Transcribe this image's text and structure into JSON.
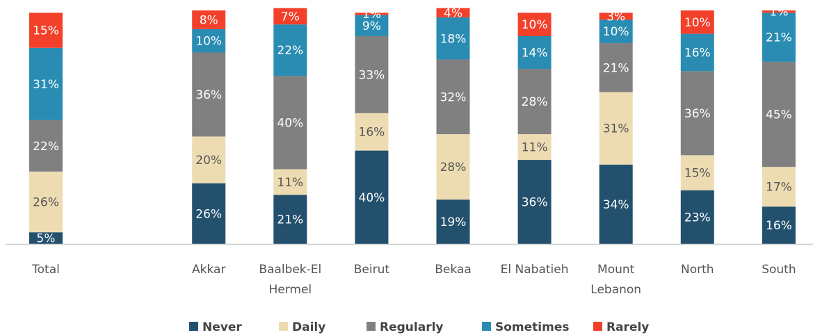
{
  "chart_data": {
    "type": "stacked_bar",
    "categories": [
      "Total",
      null,
      "Akkar",
      "Baalbek-El\nHermel",
      "Beirut",
      "Bekaa",
      "El Nabatieh",
      "Mount\nLebanon",
      "North",
      "South"
    ],
    "ylim": [
      0,
      100
    ],
    "legend": "bottom",
    "series": [
      {
        "name": "Never",
        "color": "#22506d",
        "values": [
          5,
          null,
          26,
          21,
          40,
          19,
          36,
          34,
          23,
          16
        ],
        "value_labels": [
          "5%",
          null,
          "26%",
          "21%",
          "40%",
          "19%",
          "36%",
          "34%",
          "23%",
          "16%"
        ]
      },
      {
        "name": "Daily",
        "color": "#eddcb2",
        "values": [
          26,
          null,
          20,
          11,
          16,
          28,
          11,
          31,
          15,
          17
        ],
        "value_labels": [
          "26%",
          null,
          "20%",
          "11%",
          "16%",
          "28%",
          "11%",
          "31%",
          "15%",
          "17%"
        ]
      },
      {
        "name": "Regularly",
        "color": "#808080",
        "values": [
          22,
          null,
          36,
          40,
          33,
          32,
          28,
          21,
          36,
          45
        ],
        "value_labels": [
          "22%",
          null,
          "36%",
          "40%",
          "33%",
          "32%",
          "28%",
          "21%",
          "36%",
          "45%"
        ]
      },
      {
        "name": "Sometimes",
        "color": "#2a8cb2",
        "values": [
          31,
          null,
          10,
          22,
          9,
          18,
          14,
          10,
          16,
          21
        ],
        "value_labels": [
          "31%",
          null,
          "10%",
          "22%",
          "9%",
          "18%",
          "14%",
          "10%",
          "16%",
          "21%"
        ]
      },
      {
        "name": "Rarely",
        "color": "#f3402b",
        "values": [
          15,
          null,
          8,
          7,
          1,
          4,
          10,
          3,
          10,
          1
        ],
        "value_labels": [
          "15%",
          null,
          "8%",
          "7%",
          "1%",
          "4%",
          "10%",
          "3%",
          "10%",
          "1%"
        ]
      }
    ]
  }
}
